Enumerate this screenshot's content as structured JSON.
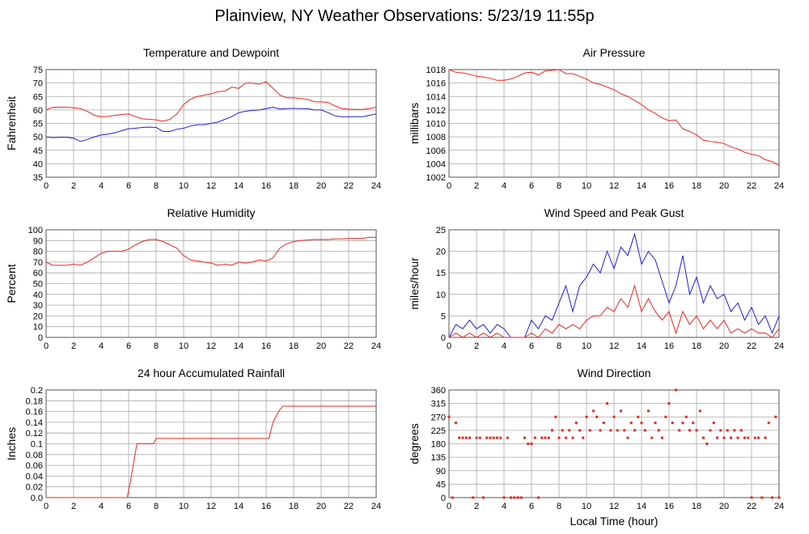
{
  "title": "Plainview, NY Weather Observations: 5/23/19 11:55p",
  "chart_data": [
    {
      "type": "line",
      "title": "Temperature and Dewpoint",
      "ylabel": "Fahrenheit",
      "grid": true,
      "x": [
        0,
        0.5,
        1,
        1.5,
        2,
        2.5,
        3,
        3.5,
        4,
        4.5,
        5,
        5.5,
        6,
        6.5,
        7,
        7.5,
        8,
        8.5,
        9,
        9.5,
        10,
        10.5,
        11,
        11.5,
        12,
        12.5,
        13,
        13.5,
        14,
        14.5,
        15,
        15.5,
        16,
        16.5,
        17,
        17.5,
        18,
        18.5,
        19,
        19.5,
        20,
        20.5,
        21,
        21.5,
        22,
        22.5,
        23,
        23.5,
        24
      ],
      "series": [
        {
          "color": "#e8281e",
          "values": [
            60,
            61,
            61,
            61,
            60.8,
            60.5,
            59.5,
            58,
            57.5,
            57.6,
            58,
            58.3,
            58.5,
            57.5,
            56.7,
            56.5,
            56.3,
            55.8,
            56.5,
            58.5,
            62,
            64,
            65,
            65.5,
            66,
            66.8,
            67,
            68.5,
            68,
            70,
            70,
            69.5,
            70.5,
            68,
            65.5,
            64.5,
            64.5,
            64.2,
            64,
            63,
            63,
            62.8,
            61.5,
            60.5,
            60.3,
            60.2,
            60.2,
            60.5,
            61
          ]
        },
        {
          "color": "#1f1fd0",
          "values": [
            50,
            49.7,
            49.8,
            49.8,
            49.5,
            48.3,
            49,
            50,
            50.7,
            51,
            51.5,
            52.3,
            53,
            53.2,
            53.5,
            53.6,
            53.5,
            52,
            52,
            52.8,
            53.2,
            54,
            54.5,
            54.5,
            55,
            55.5,
            56.5,
            57.5,
            59,
            59.5,
            59.8,
            60,
            60.5,
            61,
            60.3,
            60.5,
            60.6,
            60.5,
            60.5,
            60,
            60,
            59,
            57.8,
            57.5,
            57.5,
            57.5,
            57.5,
            58,
            58.5
          ]
        }
      ],
      "xlim": [
        0,
        24
      ],
      "xticks": [
        0,
        2,
        4,
        6,
        8,
        10,
        12,
        14,
        16,
        18,
        20,
        22,
        24
      ],
      "ylim": [
        35,
        75
      ],
      "yticks": [
        35,
        40,
        45,
        50,
        55,
        60,
        65,
        70,
        75
      ]
    },
    {
      "type": "line",
      "title": "Air Pressure",
      "ylabel": "millibars",
      "grid": true,
      "color": "#e8281e",
      "x": [
        0,
        0.5,
        1,
        1.5,
        2,
        2.5,
        3,
        3.5,
        4,
        4.5,
        5,
        5.5,
        6,
        6.5,
        7,
        7.5,
        8,
        8.5,
        9,
        9.5,
        10,
        10.5,
        11,
        11.5,
        12,
        12.5,
        13,
        13.5,
        14,
        14.5,
        15,
        15.5,
        16,
        16.5,
        17,
        17.5,
        18,
        18.5,
        19,
        19.5,
        20,
        20.5,
        21,
        21.5,
        22,
        22.5,
        23,
        23.5,
        24
      ],
      "values": [
        1018,
        1017.6,
        1017.5,
        1017.3,
        1017,
        1016.9,
        1016.7,
        1016.4,
        1016.4,
        1016.6,
        1017,
        1017.5,
        1017.6,
        1017.2,
        1017.8,
        1017.9,
        1018,
        1017.4,
        1017.4,
        1017,
        1016.6,
        1016,
        1015.8,
        1015.4,
        1015,
        1014.4,
        1014,
        1013.4,
        1012.8,
        1012,
        1011.5,
        1010.8,
        1010.4,
        1010.5,
        1009.2,
        1008.8,
        1008.3,
        1007.5,
        1007.3,
        1007.2,
        1007,
        1006.5,
        1006.2,
        1005.7,
        1005.4,
        1005.2,
        1004.6,
        1004.3,
        1003.8
      ],
      "xlim": [
        0,
        24
      ],
      "xticks": [
        0,
        2,
        4,
        6,
        8,
        10,
        12,
        14,
        16,
        18,
        20,
        22,
        24
      ],
      "ylim": [
        1002,
        1018
      ],
      "yticks": [
        1002,
        1004,
        1006,
        1008,
        1010,
        1012,
        1014,
        1016,
        1018
      ]
    },
    {
      "type": "line",
      "title": "Relative Humidity",
      "ylabel": "Percent",
      "grid": true,
      "color": "#e8281e",
      "x": [
        0,
        0.5,
        1,
        1.5,
        2,
        2.5,
        3,
        3.5,
        4,
        4.5,
        5,
        5.5,
        6,
        6.5,
        7,
        7.5,
        8,
        8.5,
        9,
        9.5,
        10,
        10.5,
        11,
        11.5,
        12,
        12.5,
        13,
        13.5,
        14,
        14.5,
        15,
        15.5,
        16,
        16.5,
        17,
        17.5,
        18,
        18.5,
        19,
        19.5,
        20,
        20.5,
        21,
        21.5,
        22,
        22.5,
        23,
        23.5,
        24
      ],
      "values": [
        70,
        67,
        67,
        67,
        68,
        67,
        70,
        74,
        78,
        80,
        80,
        80,
        82,
        86,
        89,
        91,
        91,
        89,
        86,
        83,
        76,
        72,
        71,
        70,
        69,
        67,
        68,
        67,
        70,
        69,
        70,
        72,
        71,
        74,
        83,
        87,
        89,
        90,
        90.5,
        91,
        91,
        91,
        91.5,
        91.5,
        92,
        92,
        92,
        93,
        93
      ],
      "xlim": [
        0,
        24
      ],
      "xticks": [
        0,
        2,
        4,
        6,
        8,
        10,
        12,
        14,
        16,
        18,
        20,
        22,
        24
      ],
      "ylim": [
        0,
        100
      ],
      "yticks": [
        0,
        10,
        20,
        30,
        40,
        50,
        60,
        70,
        80,
        90,
        100
      ]
    },
    {
      "type": "line",
      "title": "Wind Speed and Peak Gust",
      "ylabel": "miles/hour",
      "grid": true,
      "x": [
        0,
        0.5,
        1,
        1.5,
        2,
        2.5,
        3,
        3.5,
        4,
        4.5,
        5,
        5.5,
        6,
        6.5,
        7,
        7.5,
        8,
        8.5,
        9,
        9.5,
        10,
        10.5,
        11,
        11.5,
        12,
        12.5,
        13,
        13.5,
        14,
        14.5,
        15,
        15.5,
        16,
        16.5,
        17,
        17.5,
        18,
        18.5,
        19,
        19.5,
        20,
        20.5,
        21,
        21.5,
        22,
        22.5,
        23,
        23.5,
        24
      ],
      "series": [
        {
          "color": "#1f1fd0",
          "values": [
            0,
            3,
            2,
            4,
            2,
            3,
            1,
            3,
            2,
            0,
            0,
            0,
            4,
            2,
            5,
            4,
            8,
            12,
            6,
            12,
            14,
            17,
            15,
            20,
            16,
            21,
            19,
            24,
            17,
            20,
            18,
            13,
            8,
            12,
            19,
            10,
            14,
            8,
            12,
            9,
            10,
            6,
            8,
            4,
            7,
            3,
            5,
            1,
            5
          ]
        },
        {
          "color": "#e8281e",
          "values": [
            0,
            1,
            0,
            1,
            0,
            1,
            0,
            1,
            0,
            0,
            0,
            0,
            1,
            0,
            2,
            1,
            3,
            2,
            3,
            2,
            4,
            5,
            5,
            7,
            6,
            9,
            7,
            12,
            6,
            9,
            6,
            4,
            6,
            1,
            6,
            3,
            5,
            2,
            4,
            2,
            4,
            1,
            2,
            1,
            2,
            1,
            1,
            0,
            2
          ]
        }
      ],
      "xlim": [
        0,
        24
      ],
      "xticks": [
        0,
        2,
        4,
        6,
        8,
        10,
        12,
        14,
        16,
        18,
        20,
        22,
        24
      ],
      "ylim": [
        0,
        25
      ],
      "yticks": [
        0,
        5,
        10,
        15,
        20,
        25
      ]
    },
    {
      "type": "line",
      "title": "24 hour Accumulated Rainfall",
      "ylabel": "Inches",
      "grid": true,
      "color": "#e8281e",
      "x": [
        0,
        5.9,
        6.2,
        6.4,
        6.6,
        7.8,
        8,
        16.2,
        16.5,
        16.9,
        17.2,
        24
      ],
      "values": [
        0,
        0,
        0.04,
        0.07,
        0.1,
        0.1,
        0.11,
        0.11,
        0.14,
        0.16,
        0.17,
        0.17
      ],
      "xlim": [
        0,
        24
      ],
      "xticks": [
        0,
        2,
        4,
        6,
        8,
        10,
        12,
        14,
        16,
        18,
        20,
        22,
        24
      ],
      "ylim": [
        0,
        0.2
      ],
      "yticks": [
        {
          "value": 0,
          "label": "0.0"
        },
        0.02,
        0.04,
        0.06,
        0.08,
        0.1,
        0.12,
        0.14,
        0.16,
        0.18,
        0.2
      ]
    },
    {
      "type": "scatter",
      "title": "Wind Direction",
      "ylabel": "degrees",
      "xlabel": "Local Time (hour)",
      "grid": true,
      "color": "#e8281e",
      "x": [
        0,
        0.25,
        0.5,
        0.75,
        1,
        1.25,
        1.5,
        1.75,
        2,
        2.25,
        2.5,
        2.75,
        3,
        3.25,
        3.5,
        3.75,
        4,
        4.25,
        4.5,
        4.75,
        5,
        5.25,
        5.5,
        5.75,
        6,
        6.25,
        6.5,
        6.75,
        7,
        7.25,
        7.5,
        7.75,
        8,
        8.25,
        8.5,
        8.75,
        9,
        9.25,
        9.5,
        9.75,
        10,
        10.25,
        10.5,
        10.75,
        11,
        11.25,
        11.5,
        11.75,
        12,
        12.25,
        12.5,
        12.75,
        13,
        13.25,
        13.5,
        13.75,
        14,
        14.25,
        14.5,
        14.75,
        15,
        15.25,
        15.5,
        15.75,
        16,
        16.25,
        16.5,
        16.75,
        17,
        17.25,
        17.5,
        17.75,
        18,
        18.25,
        18.5,
        18.75,
        19,
        19.25,
        19.5,
        19.75,
        20,
        20.25,
        20.5,
        20.75,
        21,
        21.25,
        21.5,
        21.75,
        22,
        22.25,
        22.5,
        22.75,
        23,
        23.25,
        23.5,
        23.75,
        24
      ],
      "values": [
        270,
        0,
        250,
        200,
        200,
        200,
        200,
        0,
        200,
        200,
        0,
        200,
        200,
        200,
        200,
        200,
        0,
        200,
        0,
        0,
        0,
        0,
        200,
        180,
        180,
        200,
        0,
        200,
        200,
        200,
        225,
        270,
        200,
        225,
        200,
        225,
        200,
        250,
        225,
        200,
        270,
        225,
        290,
        270,
        225,
        250,
        315,
        225,
        270,
        225,
        290,
        225,
        200,
        250,
        225,
        270,
        250,
        225,
        290,
        200,
        250,
        225,
        200,
        270,
        315,
        250,
        360,
        225,
        250,
        270,
        225,
        250,
        225,
        290,
        200,
        180,
        225,
        250,
        200,
        225,
        200,
        225,
        200,
        225,
        200,
        225,
        200,
        200,
        0,
        200,
        200,
        0,
        200,
        250,
        0,
        270,
        0
      ],
      "xlim": [
        0,
        24
      ],
      "xticks": [
        0,
        2,
        4,
        6,
        8,
        10,
        12,
        14,
        16,
        18,
        20,
        22,
        24
      ],
      "ylim": [
        0,
        360
      ],
      "yticks": [
        0,
        45,
        90,
        135,
        180,
        225,
        270,
        315,
        360
      ]
    }
  ]
}
